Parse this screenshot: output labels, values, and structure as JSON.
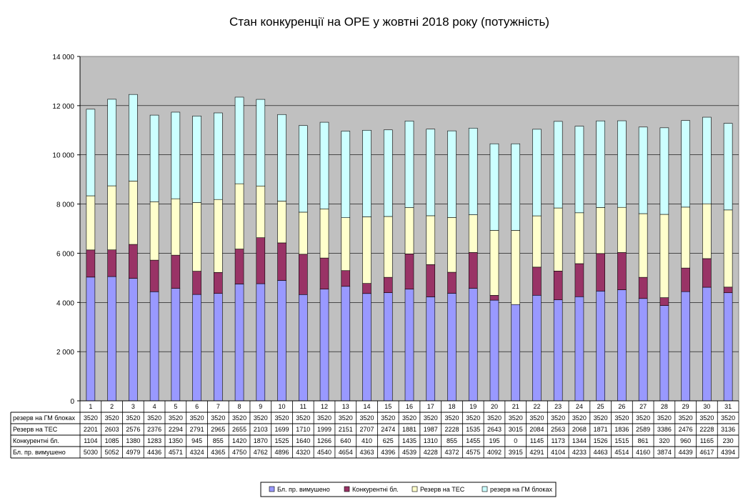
{
  "chart_data": {
    "type": "bar",
    "stacked": true,
    "title": "Стан конкуренції на ОРЕ  у жовтні 2018 року (потужність)",
    "xlabel": "",
    "ylabel": "",
    "ylim": [
      0,
      14000
    ],
    "yticks": [
      "0",
      "2 000",
      "4 000",
      "6 000",
      "8 000",
      "10 000",
      "12 000",
      "14 000"
    ],
    "grid": true,
    "legend_position": "bottom",
    "categories": [
      "1",
      "2",
      "3",
      "4",
      "5",
      "6",
      "7",
      "8",
      "9",
      "10",
      "11",
      "12",
      "13",
      "14",
      "15",
      "16",
      "17",
      "18",
      "19",
      "20",
      "21",
      "22",
      "23",
      "24",
      "25",
      "26",
      "27",
      "28",
      "29",
      "30",
      "31"
    ],
    "series": [
      {
        "name": "Бл. пр. вимушено",
        "color": "#9999ff",
        "values": [
          5030,
          5052,
          4979,
          4436,
          4571,
          4324,
          4365,
          4750,
          4762,
          4896,
          4320,
          4540,
          4654,
          4363,
          4396,
          4539,
          4228,
          4372,
          4575,
          4092,
          3915,
          4291,
          4104,
          4233,
          4463,
          4514,
          4160,
          3874,
          4439,
          4617,
          4394
        ]
      },
      {
        "name": "Конкурентні бл.",
        "color": "#993366",
        "values": [
          1104,
          1085,
          1380,
          1283,
          1350,
          945,
          855,
          1420,
          1870,
          1525,
          1640,
          1266,
          640,
          410,
          625,
          1435,
          1310,
          855,
          1455,
          195,
          0,
          1145,
          1173,
          1344,
          1526,
          1515,
          861,
          320,
          960,
          1165,
          230
        ]
      },
      {
        "name": "Резерв на ТЕС",
        "color": "#ffffcc",
        "values": [
          2201,
          2603,
          2576,
          2376,
          2294,
          2791,
          2965,
          2655,
          2103,
          1699,
          1710,
          1999,
          2151,
          2707,
          2474,
          1881,
          1987,
          2228,
          1535,
          2643,
          3015,
          2084,
          2563,
          2068,
          1871,
          1836,
          2589,
          3386,
          2476,
          2228,
          3136
        ]
      },
      {
        "name": "резерв на ГМ блоках",
        "color": "#ccffff",
        "values": [
          3520,
          3520,
          3520,
          3520,
          3520,
          3520,
          3520,
          3520,
          3520,
          3520,
          3520,
          3520,
          3520,
          3520,
          3520,
          3520,
          3520,
          3520,
          3520,
          3520,
          3520,
          3520,
          3520,
          3520,
          3520,
          3520,
          3520,
          3520,
          3520,
          3520,
          3520
        ]
      }
    ],
    "table_rows": [
      {
        "label": "резерв на ГМ блоках",
        "series_index": 3
      },
      {
        "label": "Резерв на ТЕС",
        "series_index": 2
      },
      {
        "label": "Конкурентні бл.",
        "series_index": 1
      },
      {
        "label": "Бл. пр. вимушено",
        "series_index": 0
      }
    ],
    "plot_background": "#c0c0c0"
  }
}
